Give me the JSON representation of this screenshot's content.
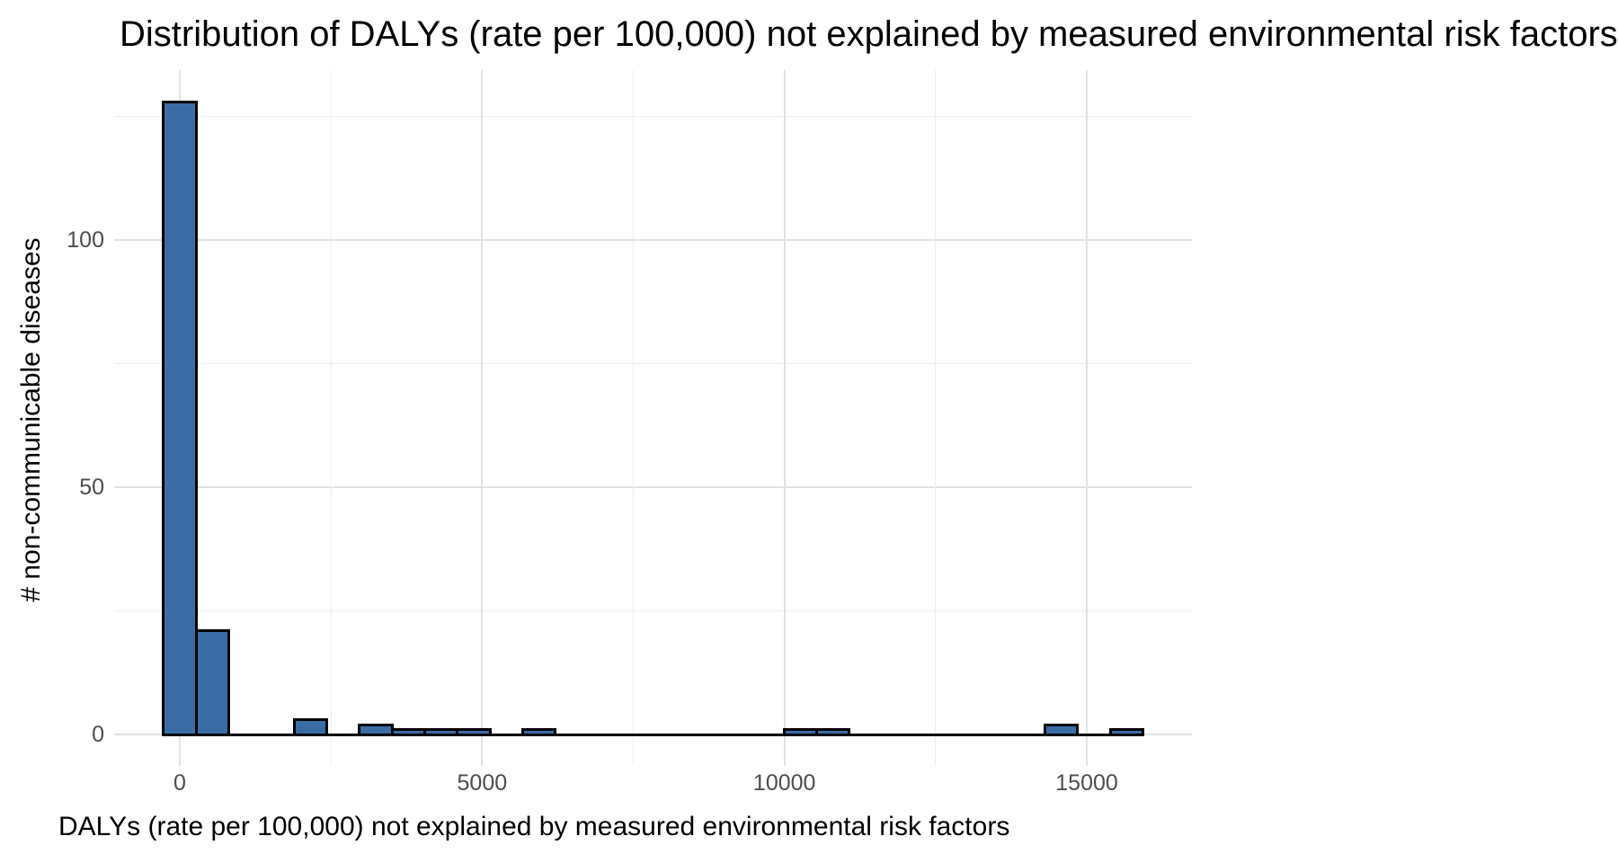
{
  "title": "Distribution of DALYs (rate per 100,000) not explained by measured environmental risk factors",
  "x_axis": {
    "label": "DALYs (rate per 100,000) not explained by measured environmental risk factors",
    "ticks": [
      {
        "value": 0,
        "label": "0"
      },
      {
        "value": 5000,
        "label": "5000"
      },
      {
        "value": 10000,
        "label": "10000"
      },
      {
        "value": 15000,
        "label": "15000"
      }
    ],
    "minor_ticks": [
      2500,
      7500,
      12500
    ]
  },
  "y_axis": {
    "label": "# non-communicable diseases",
    "ticks": [
      {
        "value": 0,
        "label": "0"
      },
      {
        "value": 50,
        "label": "50"
      },
      {
        "value": 100,
        "label": "100"
      }
    ],
    "minor_ticks": [
      25,
      75,
      125
    ]
  },
  "chart_data": {
    "type": "bar",
    "subtype": "histogram",
    "title": "Distribution of DALYs (rate per 100,000) not explained by measured environmental risk factors",
    "xlabel": "DALYs (rate per 100,000) not explained by measured environmental risk factors",
    "ylabel": "# non-communicable diseases",
    "bin_start": -270,
    "bin_width": 540,
    "counts": [
      128,
      21,
      0,
      0,
      3,
      0,
      2,
      1,
      1,
      1,
      0,
      1,
      0,
      0,
      0,
      0,
      0,
      0,
      0,
      1,
      1,
      0,
      0,
      0,
      0,
      0,
      0,
      2,
      0,
      1
    ],
    "xlim": [
      -1080,
      16740
    ],
    "ylim": [
      -6.4,
      134.4
    ],
    "grid": "major-and-minor",
    "legend": "none"
  },
  "colors": {
    "background": "#FFFFFF",
    "bar_fill": "#3A6DA6",
    "bar_stroke": "#000000",
    "grid_major": "#E2E2E2",
    "grid_minor": "#EDEDED",
    "tick_label_text": "#4D4D4D",
    "title_text": "#000000"
  }
}
